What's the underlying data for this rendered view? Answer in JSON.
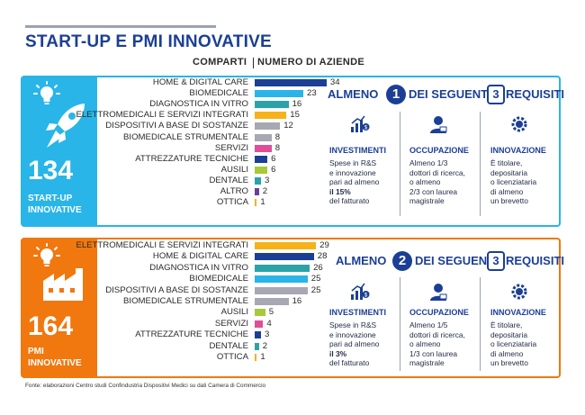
{
  "title": "START-UP E PMI INNOVATIVE",
  "column_headers": {
    "sectors": "COMPARTI",
    "companies": "NUMERO DI AZIENDE"
  },
  "colors": {
    "navy": "#1b3f95",
    "cyan": "#29b5e8",
    "orange": "#f0780f",
    "gray": "#a8a8b4",
    "purple": "#6a3f98",
    "pink": "#e04e97",
    "lime": "#a7c93c",
    "teal": "#2aa3a8",
    "gold": "#f6b21b"
  },
  "startup": {
    "count": "134",
    "label_line1": "START-UP",
    "label_line2": "INNOVATIVE",
    "requirement": {
      "prefix": "ALMENO",
      "min": "1",
      "middle": "DEI SEGUENTI",
      "of": "3",
      "suffix": "REQUISITI"
    },
    "criteria": [
      {
        "title": "INVESTIMENTI",
        "lines": [
          "Spese in R&S",
          "e innovazione",
          "pari ad almeno",
          "il 15%",
          "del fatturato"
        ]
      },
      {
        "title": "OCCUPAZIONE",
        "lines": [
          "Almeno 1/3",
          "dottori di ricerca,",
          "o almeno",
          "2/3 con laurea",
          "magistrale"
        ]
      },
      {
        "title": "INNOVAZIONE",
        "lines": [
          "È titolare,",
          "depositaria",
          "o licenziataria",
          "di almeno",
          "un brevetto"
        ]
      }
    ]
  },
  "pmi": {
    "count": "164",
    "label_line1": "PMI",
    "label_line2": "INNOVATIVE",
    "requirement": {
      "prefix": "ALMENO",
      "min": "2",
      "middle": "DEI SEGUENTI",
      "of": "3",
      "suffix": "REQUISITI"
    },
    "criteria": [
      {
        "title": "INVESTIMENTI",
        "lines": [
          "Spese in R&S",
          "e innovazione",
          "pari ad almeno",
          "il 3%",
          "del fatturato"
        ]
      },
      {
        "title": "OCCUPAZIONE",
        "lines": [
          "Almeno 1/5",
          "dottori di ricerca,",
          "o almeno",
          "1/3 con laurea",
          "magistrale"
        ]
      },
      {
        "title": "INNOVAZIONE",
        "lines": [
          "È titolare,",
          "depositaria",
          "o licenziataria",
          "di almeno",
          "un brevetto"
        ]
      }
    ]
  },
  "chart_data": [
    {
      "type": "bar",
      "orientation": "horizontal",
      "title": "START-UP INNOVATIVE",
      "categories": [
        "HOME & DIGITAL CARE",
        "BIOMEDICALE",
        "DIAGNOSTICA IN VITRO",
        "ELETTROMEDICALI E SERVIZI INTEGRATI",
        "DISPOSITIVI A BASE DI SOSTANZE",
        "BIOMEDICALE STRUMENTALE",
        "SERVIZI",
        "ATTREZZATURE TECNICHE",
        "AUSILI",
        "DENTALE",
        "ALTRO",
        "OTTICA"
      ],
      "values": [
        34,
        23,
        16,
        15,
        12,
        8,
        8,
        6,
        6,
        3,
        2,
        1
      ],
      "bar_colors": [
        "#1b3f95",
        "#29b5e8",
        "#2aa3a8",
        "#f6b21b",
        "#a8a8b4",
        "#a8a8b4",
        "#e04e97",
        "#1b3f95",
        "#a7c93c",
        "#2aa3a8",
        "#6a3f98",
        "#f6b21b"
      ],
      "value_labels": true
    },
    {
      "type": "bar",
      "orientation": "horizontal",
      "title": "PMI INNOVATIVE",
      "categories": [
        "ELETTROMEDICALI E SERVIZI INTEGRATI",
        "HOME & DIGITAL CARE",
        "DIAGNOSTICA IN VITRO",
        "BIOMEDICALE",
        "DISPOSITIVI A BASE DI SOSTANZE",
        "BIOMEDICALE STRUMENTALE",
        "AUSILI",
        "SERVIZI",
        "ATTREZZATURE TECNICHE",
        "DENTALE",
        "OTTICA"
      ],
      "values": [
        29,
        28,
        26,
        25,
        25,
        16,
        5,
        4,
        3,
        2,
        1
      ],
      "bar_colors": [
        "#f6b21b",
        "#1b3f95",
        "#2aa3a8",
        "#29b5e8",
        "#a8a8b4",
        "#a8a8b4",
        "#a7c93c",
        "#e04e97",
        "#1b3f95",
        "#2aa3a8",
        "#f6b21b"
      ],
      "value_labels": true
    }
  ],
  "footer": "Fonte: elaborazioni Centro studi Confindustria Dispositivi Medici su dati Camera di Commercio"
}
